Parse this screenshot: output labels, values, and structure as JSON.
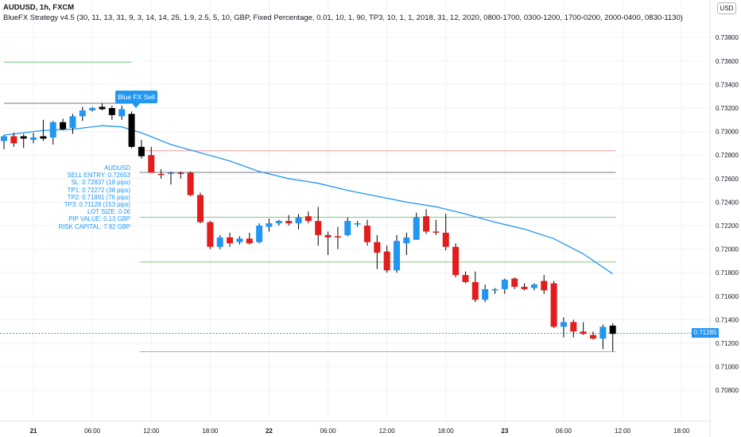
{
  "header": {
    "title": "AUDUSD, 1h, FXCM",
    "strategy": "BlueFX Strategy v4.5 (30, 11, 13, 31, 9, 3, 14, 14, 25, 1.9, 2.5, 5, 10, GBP, Fixed Percentage, 0.01, 10, 1, 90, TP3, 10, 1, 1, 2018, 31, 12, 2020, 0800-1700, 0300-1200, 1700-0200, 2000-0400, 0830-1130)",
    "currency": "USD"
  },
  "signal_label": "Blue FX Sell",
  "info_box": [
    "AUDUSD",
    "SELL ENTRY: 0.72653",
    "SL: 0.72837 (18 pips)",
    "TP1: 0.72272 (38 pips)",
    "TP2: 0.71891 (76 pips)",
    "TP3: 0.71128 (153 pips)",
    "LOT SIZE: 0.06",
    "PIP VALUE: 0.13 GBP",
    "RISK CAPITAL: 7.92 GBP"
  ],
  "last_price": "0.71285",
  "colors": {
    "up": "#2196f3",
    "down": "#e31c1c",
    "signal": "#000000",
    "ma": "#2196f3",
    "sl": "#ef9a9a",
    "entry": "#787b86",
    "tp": "#81c784",
    "grid": "#f0f3fa"
  },
  "chart_data": {
    "type": "candlestick",
    "symbol": "AUDUSD",
    "timeframe": "1h",
    "exchange": "FXCM",
    "x_ticks": [
      "21",
      "06:00",
      "12:00",
      "18:00",
      "22",
      "06:00",
      "12:00",
      "18:00",
      "23",
      "06:00",
      "12:00",
      "18:00"
    ],
    "y_ticks": [
      "0.73800",
      "0.73600",
      "0.73400",
      "0.73200",
      "0.73000",
      "0.72800",
      "0.72600",
      "0.72400",
      "0.72200",
      "0.72000",
      "0.71800",
      "0.71600",
      "0.71400",
      "0.71200",
      "0.71000",
      "0.70800"
    ],
    "ylim": [
      0.7068,
      0.7397
    ],
    "x_first_bar_hour": 0,
    "x_first_tick_bar": 3,
    "candles": [
      {
        "o": 0.7292,
        "h": 0.7297,
        "l": 0.7285,
        "c": 0.7296,
        "k": "up"
      },
      {
        "o": 0.7296,
        "h": 0.7299,
        "l": 0.7287,
        "c": 0.729,
        "k": "down"
      },
      {
        "o": 0.7294,
        "h": 0.7298,
        "l": 0.7286,
        "c": 0.7296,
        "k": "black"
      },
      {
        "o": 0.7293,
        "h": 0.7299,
        "l": 0.729,
        "c": 0.7295,
        "k": "up"
      },
      {
        "o": 0.7296,
        "h": 0.731,
        "l": 0.7292,
        "c": 0.7294,
        "k": "black"
      },
      {
        "o": 0.7295,
        "h": 0.7309,
        "l": 0.7289,
        "c": 0.7308,
        "k": "up"
      },
      {
        "o": 0.7308,
        "h": 0.7311,
        "l": 0.7301,
        "c": 0.7302,
        "k": "black"
      },
      {
        "o": 0.7303,
        "h": 0.7315,
        "l": 0.7298,
        "c": 0.7313,
        "k": "up"
      },
      {
        "o": 0.7313,
        "h": 0.7321,
        "l": 0.7309,
        "c": 0.7318,
        "k": "up"
      },
      {
        "o": 0.7318,
        "h": 0.7321,
        "l": 0.7317,
        "c": 0.732,
        "k": "up"
      },
      {
        "o": 0.7321,
        "h": 0.7324,
        "l": 0.7318,
        "c": 0.7319,
        "k": "black"
      },
      {
        "o": 0.732,
        "h": 0.7322,
        "l": 0.731,
        "c": 0.7314,
        "k": "black"
      },
      {
        "o": 0.7313,
        "h": 0.7322,
        "l": 0.731,
        "c": 0.7319,
        "k": "up"
      },
      {
        "o": 0.7315,
        "h": 0.7317,
        "l": 0.7286,
        "c": 0.7287,
        "k": "black"
      },
      {
        "o": 0.7287,
        "h": 0.7293,
        "l": 0.7277,
        "c": 0.7279,
        "k": "black"
      },
      {
        "o": 0.728,
        "h": 0.7287,
        "l": 0.7265,
        "c": 0.7265,
        "k": "down"
      },
      {
        "o": 0.7263,
        "h": 0.7268,
        "l": 0.726,
        "c": 0.7264,
        "k": "down"
      },
      {
        "o": 0.7264,
        "h": 0.7266,
        "l": 0.7255,
        "c": 0.7265,
        "k": "up"
      },
      {
        "o": 0.7265,
        "h": 0.7266,
        "l": 0.726,
        "c": 0.7264,
        "k": "down"
      },
      {
        "o": 0.7265,
        "h": 0.7266,
        "l": 0.7245,
        "c": 0.7246,
        "k": "down"
      },
      {
        "o": 0.7246,
        "h": 0.7248,
        "l": 0.7222,
        "c": 0.7223,
        "k": "down"
      },
      {
        "o": 0.7223,
        "h": 0.7224,
        "l": 0.72,
        "c": 0.7202,
        "k": "down"
      },
      {
        "o": 0.7202,
        "h": 0.7212,
        "l": 0.72,
        "c": 0.721,
        "k": "up"
      },
      {
        "o": 0.721,
        "h": 0.7214,
        "l": 0.7202,
        "c": 0.7205,
        "k": "down"
      },
      {
        "o": 0.7206,
        "h": 0.7211,
        "l": 0.7204,
        "c": 0.7209,
        "k": "up"
      },
      {
        "o": 0.7209,
        "h": 0.7214,
        "l": 0.7204,
        "c": 0.7205,
        "k": "down"
      },
      {
        "o": 0.7206,
        "h": 0.7222,
        "l": 0.7205,
        "c": 0.722,
        "k": "up"
      },
      {
        "o": 0.7219,
        "h": 0.7226,
        "l": 0.7215,
        "c": 0.7222,
        "k": "up"
      },
      {
        "o": 0.7222,
        "h": 0.7225,
        "l": 0.722,
        "c": 0.7224,
        "k": "up"
      },
      {
        "o": 0.7224,
        "h": 0.7229,
        "l": 0.722,
        "c": 0.7222,
        "k": "down"
      },
      {
        "o": 0.7222,
        "h": 0.723,
        "l": 0.7217,
        "c": 0.7227,
        "k": "up"
      },
      {
        "o": 0.7228,
        "h": 0.7232,
        "l": 0.7222,
        "c": 0.7224,
        "k": "down"
      },
      {
        "o": 0.7224,
        "h": 0.7236,
        "l": 0.7203,
        "c": 0.7212,
        "k": "down"
      },
      {
        "o": 0.7212,
        "h": 0.7215,
        "l": 0.7195,
        "c": 0.721,
        "k": "down"
      },
      {
        "o": 0.7211,
        "h": 0.7219,
        "l": 0.72,
        "c": 0.721,
        "k": "down"
      },
      {
        "o": 0.7212,
        "h": 0.7227,
        "l": 0.7211,
        "c": 0.7224,
        "k": "up"
      },
      {
        "o": 0.7222,
        "h": 0.7224,
        "l": 0.7219,
        "c": 0.7222,
        "k": "up"
      },
      {
        "o": 0.722,
        "h": 0.7225,
        "l": 0.7203,
        "c": 0.7206,
        "k": "down"
      },
      {
        "o": 0.7206,
        "h": 0.7212,
        "l": 0.7183,
        "c": 0.7197,
        "k": "down"
      },
      {
        "o": 0.7198,
        "h": 0.7203,
        "l": 0.718,
        "c": 0.7182,
        "k": "down"
      },
      {
        "o": 0.7182,
        "h": 0.7212,
        "l": 0.718,
        "c": 0.7207,
        "k": "up"
      },
      {
        "o": 0.7205,
        "h": 0.7214,
        "l": 0.7195,
        "c": 0.721,
        "k": "up"
      },
      {
        "o": 0.7208,
        "h": 0.7231,
        "l": 0.7208,
        "c": 0.7227,
        "k": "up"
      },
      {
        "o": 0.7228,
        "h": 0.7234,
        "l": 0.7213,
        "c": 0.7215,
        "k": "down"
      },
      {
        "o": 0.7215,
        "h": 0.7225,
        "l": 0.7212,
        "c": 0.7214,
        "k": "down"
      },
      {
        "o": 0.7214,
        "h": 0.723,
        "l": 0.7199,
        "c": 0.7202,
        "k": "down"
      },
      {
        "o": 0.7202,
        "h": 0.7205,
        "l": 0.7176,
        "c": 0.7178,
        "k": "down"
      },
      {
        "o": 0.7178,
        "h": 0.7181,
        "l": 0.7171,
        "c": 0.7172,
        "k": "down"
      },
      {
        "o": 0.7172,
        "h": 0.7181,
        "l": 0.7155,
        "c": 0.7157,
        "k": "down"
      },
      {
        "o": 0.7157,
        "h": 0.717,
        "l": 0.7155,
        "c": 0.7166,
        "k": "up"
      },
      {
        "o": 0.7165,
        "h": 0.7167,
        "l": 0.7162,
        "c": 0.7166,
        "k": "up"
      },
      {
        "o": 0.7166,
        "h": 0.7175,
        "l": 0.7162,
        "c": 0.7174,
        "k": "up"
      },
      {
        "o": 0.7175,
        "h": 0.7176,
        "l": 0.7166,
        "c": 0.7168,
        "k": "down"
      },
      {
        "o": 0.7168,
        "h": 0.7171,
        "l": 0.7165,
        "c": 0.7166,
        "k": "down"
      },
      {
        "o": 0.7167,
        "h": 0.7171,
        "l": 0.7165,
        "c": 0.717,
        "k": "up"
      },
      {
        "o": 0.7173,
        "h": 0.7178,
        "l": 0.7162,
        "c": 0.7165,
        "k": "down"
      },
      {
        "o": 0.7171,
        "h": 0.7173,
        "l": 0.7133,
        "c": 0.7134,
        "k": "down"
      },
      {
        "o": 0.7134,
        "h": 0.7142,
        "l": 0.7125,
        "c": 0.7138,
        "k": "up"
      },
      {
        "o": 0.7138,
        "h": 0.714,
        "l": 0.7125,
        "c": 0.713,
        "k": "down"
      },
      {
        "o": 0.713,
        "h": 0.7138,
        "l": 0.7127,
        "c": 0.7128,
        "k": "down"
      },
      {
        "o": 0.7127,
        "h": 0.713,
        "l": 0.7123,
        "c": 0.7124,
        "k": "down"
      },
      {
        "o": 0.7124,
        "h": 0.7136,
        "l": 0.7115,
        "c": 0.7134,
        "k": "up"
      },
      {
        "o": 0.7135,
        "h": 0.7137,
        "l": 0.7113,
        "c": 0.7128,
        "k": "black"
      }
    ],
    "moving_average": [
      [
        0,
        0.7297
      ],
      [
        4,
        0.7301
      ],
      [
        7,
        0.7302
      ],
      [
        10,
        0.7305
      ],
      [
        12,
        0.7304
      ],
      [
        14,
        0.7299
      ],
      [
        17,
        0.7289
      ],
      [
        20,
        0.7282
      ],
      [
        23,
        0.7275
      ],
      [
        26,
        0.7266
      ],
      [
        29,
        0.726
      ],
      [
        32,
        0.7256
      ],
      [
        35,
        0.725
      ],
      [
        38,
        0.7245
      ],
      [
        41,
        0.724
      ],
      [
        44,
        0.7236
      ],
      [
        47,
        0.723
      ],
      [
        50,
        0.7223
      ],
      [
        53,
        0.7217
      ],
      [
        56,
        0.7209
      ],
      [
        59,
        0.7196
      ],
      [
        62,
        0.7179
      ]
    ],
    "levels": [
      {
        "name": "sl",
        "price": 0.72837,
        "x_from": 13.8,
        "x_to": 62.3
      },
      {
        "name": "entry",
        "price": 0.72653,
        "x_from": 13.8,
        "x_to": 62.3
      },
      {
        "name": "tp1",
        "price": 0.72272,
        "x_from": 13.8,
        "x_to": 62.3
      },
      {
        "name": "tp2",
        "price": 0.71891,
        "x_from": 13.8,
        "x_to": 62.3
      },
      {
        "name": "tp3",
        "price": 0.71128,
        "x_from": 13.8,
        "x_to": 62.3
      },
      {
        "name": "prev-top",
        "price": 0.7324,
        "x_from": 0,
        "x_to": 13
      },
      {
        "name": "prev-green",
        "price": 0.7359,
        "x_from": 0,
        "x_to": 13
      }
    ],
    "current_price": 0.71285
  }
}
